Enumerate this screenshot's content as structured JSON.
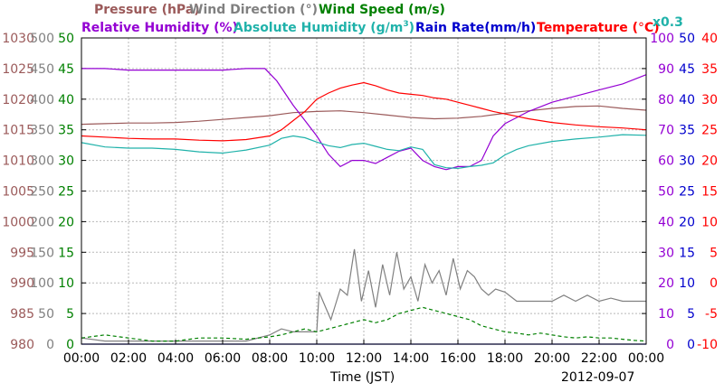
{
  "chart_data": {
    "type": "line",
    "date": "2012-09-07",
    "xlabel": "Time (JST)",
    "x_ticks": [
      "00:00",
      "02:00",
      "04:00",
      "06:00",
      "08:00",
      "10:00",
      "12:00",
      "14:00",
      "16:00",
      "18:00",
      "20:00",
      "22:00",
      "00:00"
    ],
    "xlim_hours": [
      0,
      24
    ],
    "grid": true,
    "legend": {
      "pressure": "Pressure (hPa)",
      "wind_direction": "Wind Direction (°)",
      "wind_speed": "Wind Speed (m/s)",
      "relative_humidity": "Relative Humidity (%)",
      "absolute_humidity_prefix": "Absolute Humidity (g/m",
      "absolute_humidity_sup": "3",
      "absolute_humidity_suffix": ")",
      "rain_rate": "Rain Rate(mm/h)",
      "temperature_prefix": "Temperature (",
      "temperature_deg": "°",
      "temperature_suffix": "C)",
      "rh_scale_note": "x0.3"
    },
    "axes": {
      "pressure": {
        "color": "#9B5A5A",
        "range": [
          980,
          1030
        ],
        "ticks": [
          "1030",
          "1025",
          "1020",
          "1015",
          "1010",
          "1005",
          "1000",
          "995",
          "990",
          "985",
          "980"
        ]
      },
      "wind_direction": {
        "color": "#808080",
        "range": [
          0,
          500
        ],
        "ticks": [
          "500",
          "450",
          "400",
          "350",
          "300",
          "250",
          "200",
          "150",
          "100",
          "50",
          "0"
        ]
      },
      "wind_speed": {
        "color": "#008000",
        "range": [
          0,
          50
        ],
        "ticks": [
          "50",
          "45",
          "40",
          "35",
          "30",
          "25",
          "20",
          "15",
          "10",
          "5",
          "0"
        ]
      },
      "relative_humidity": {
        "color": "#9400D3",
        "range": [
          0,
          100
        ],
        "ticks": [
          "100",
          "90",
          "80",
          "70",
          "60",
          "50",
          "40",
          "30",
          "20",
          "10",
          "0"
        ]
      },
      "rain_rate": {
        "color": "#0000CD",
        "range": [
          0,
          50
        ],
        "ticks": [
          "50",
          "45",
          "40",
          "35",
          "30",
          "25",
          "20",
          "15",
          "10",
          "5",
          "0"
        ]
      },
      "temperature": {
        "color": "#FF0000",
        "range": [
          -10,
          40
        ],
        "ticks": [
          "40",
          "35",
          "30",
          "25",
          "20",
          "15",
          "10",
          "5",
          "0",
          "-5",
          "-10"
        ]
      }
    },
    "series": [
      {
        "name": "Pressure (hPa)",
        "axis": "pressure",
        "color": "#9B5A5A",
        "x": [
          0,
          1,
          2,
          3,
          4,
          5,
          6,
          7,
          8,
          9,
          10,
          11,
          12,
          13,
          14,
          15,
          16,
          17,
          18,
          19,
          20,
          21,
          22,
          23,
          24
        ],
        "y": [
          1015.9,
          1016.0,
          1016.1,
          1016.1,
          1016.2,
          1016.4,
          1016.7,
          1017.0,
          1017.3,
          1017.8,
          1018.0,
          1018.1,
          1017.8,
          1017.4,
          1017.0,
          1016.8,
          1016.9,
          1017.2,
          1017.7,
          1018.1,
          1018.5,
          1018.8,
          1018.9,
          1018.5,
          1018.2
        ]
      },
      {
        "name": "Relative Humidity (%)",
        "axis": "relative_humidity",
        "color": "#9400D3",
        "x": [
          0,
          1,
          2,
          3,
          4,
          5,
          6,
          7,
          7.8,
          8.3,
          9,
          9.5,
          10,
          10.5,
          11,
          11.5,
          12,
          12.5,
          13,
          13.5,
          14,
          14.5,
          15,
          15.5,
          16,
          16.5,
          17,
          17.5,
          18,
          18.5,
          19,
          20,
          21,
          22,
          23,
          24
        ],
        "y": [
          90,
          90,
          89.5,
          89.5,
          89.5,
          89.5,
          89.5,
          90,
          90,
          86,
          78,
          73,
          68,
          62,
          58,
          60,
          60,
          59,
          61,
          63,
          64,
          60,
          58,
          57,
          58,
          58,
          60,
          68,
          72,
          74,
          76,
          79,
          81,
          83,
          85,
          88
        ]
      },
      {
        "name": "Absolute Humidity (g/m3)",
        "axis": "wind_direction",
        "color": "#20B2AA",
        "x": [
          0,
          1,
          2,
          3,
          4,
          5,
          6,
          7,
          8,
          8.5,
          9,
          9.5,
          10,
          10.5,
          11,
          11.5,
          12,
          12.5,
          13,
          13.5,
          14,
          14.5,
          15,
          15.5,
          16,
          16.5,
          17,
          17.5,
          18,
          18.5,
          19,
          20,
          21,
          22,
          23,
          24
        ],
        "y": [
          329,
          322,
          320,
          320,
          318,
          314,
          312,
          317,
          325,
          336,
          340,
          337,
          330,
          324,
          321,
          326,
          328,
          323,
          318,
          316,
          322,
          318,
          293,
          288,
          287,
          290,
          292,
          296,
          309,
          318,
          324,
          331,
          335,
          338,
          342,
          341
        ]
      },
      {
        "name": "Temperature (°C)",
        "axis": "temperature",
        "color": "#FF0000",
        "x": [
          0,
          1,
          2,
          3,
          4,
          5,
          6,
          7,
          8,
          8.5,
          9,
          9.5,
          10,
          10.5,
          11,
          11.5,
          12,
          12.5,
          13,
          13.5,
          14,
          14.5,
          15,
          15.5,
          16,
          16.5,
          17,
          17.5,
          18,
          18.5,
          19,
          20,
          21,
          22,
          23,
          24
        ],
        "y": [
          24.0,
          23.8,
          23.6,
          23.5,
          23.5,
          23.3,
          23.2,
          23.4,
          24.0,
          25.0,
          26.5,
          28.0,
          30.0,
          31.0,
          31.8,
          32.3,
          32.7,
          32.2,
          31.5,
          31.0,
          30.8,
          30.6,
          30.2,
          30.0,
          29.5,
          29.0,
          28.5,
          28.0,
          27.6,
          27.2,
          26.8,
          26.2,
          25.8,
          25.5,
          25.3,
          25.0
        ]
      },
      {
        "name": "Wind Direction (°)",
        "axis": "wind_direction",
        "color": "#808080",
        "x": [
          0,
          1,
          2,
          3,
          4,
          5,
          6,
          7,
          8,
          8.5,
          9,
          9.5,
          10,
          10.1,
          10.6,
          11,
          11.3,
          11.6,
          11.9,
          12.2,
          12.5,
          12.8,
          13.1,
          13.4,
          13.7,
          14,
          14.3,
          14.6,
          14.9,
          15.2,
          15.5,
          15.8,
          16.1,
          16.4,
          16.7,
          17,
          17.3,
          17.6,
          18,
          18.5,
          19,
          19.5,
          20,
          20.5,
          21,
          21.5,
          22,
          22.5,
          23,
          23.5,
          24
        ],
        "y": [
          10,
          5,
          5,
          5,
          5,
          5,
          5,
          5,
          15,
          25,
          20,
          20,
          20,
          85,
          40,
          90,
          80,
          155,
          70,
          120,
          60,
          130,
          80,
          150,
          90,
          110,
          70,
          130,
          100,
          120,
          80,
          140,
          90,
          120,
          110,
          90,
          80,
          90,
          85,
          70,
          70,
          70,
          70,
          80,
          70,
          80,
          70,
          75,
          70,
          70,
          70
        ]
      },
      {
        "name": "Wind Speed (m/s)",
        "axis": "wind_speed",
        "color": "#008000",
        "style": "dashed",
        "x": [
          0,
          1,
          2,
          3,
          4,
          5,
          6,
          7,
          8,
          8.5,
          9,
          9.5,
          10,
          10.5,
          11,
          11.5,
          12,
          12.5,
          13,
          13.5,
          14,
          14.5,
          15,
          15.5,
          16,
          16.5,
          17,
          17.5,
          18,
          18.5,
          19,
          19.5,
          20,
          20.5,
          21,
          21.5,
          22,
          22.5,
          23,
          23.5,
          24
        ],
        "y": [
          1.0,
          1.5,
          1.0,
          0.5,
          0.5,
          1.0,
          1.0,
          0.8,
          1.2,
          1.5,
          2.0,
          2.5,
          2.0,
          2.5,
          3.0,
          3.5,
          4.0,
          3.5,
          4.0,
          5.0,
          5.5,
          6.0,
          5.5,
          5.0,
          4.5,
          4.0,
          3.0,
          2.5,
          2.0,
          1.8,
          1.5,
          1.8,
          1.5,
          1.2,
          1.0,
          1.2,
          1.0,
          1.0,
          0.8,
          0.6,
          0.5
        ]
      },
      {
        "name": "Rain Rate(mm/h)",
        "axis": "rain_rate",
        "color": "#0000CD",
        "x": [
          0,
          24
        ],
        "y": [
          0,
          0
        ]
      }
    ]
  }
}
